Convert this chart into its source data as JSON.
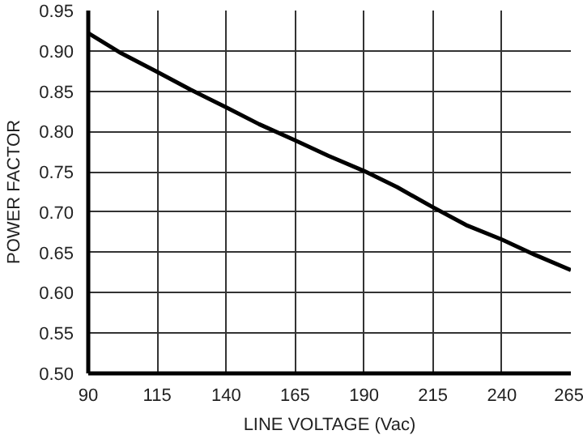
{
  "chart_data": {
    "type": "line",
    "xlabel": "LINE VOLTAGE (Vac)",
    "ylabel": "POWER FACTOR",
    "x": [
      90,
      102,
      115,
      127,
      140,
      152,
      165,
      177,
      190,
      202,
      215,
      227,
      240,
      252,
      265
    ],
    "series": [
      {
        "color": "#000000",
        "values": [
          0.922,
          0.897,
          0.874,
          0.852,
          0.83,
          0.809,
          0.789,
          0.77,
          0.751,
          0.731,
          0.706,
          0.684,
          0.666,
          0.647,
          0.628
        ]
      }
    ],
    "xlim": [
      90,
      265
    ],
    "ylim": [
      0.5,
      0.95
    ],
    "xticks": [
      90,
      115,
      140,
      165,
      190,
      215,
      240,
      265
    ],
    "yticks": [
      {
        "value": 0.5,
        "label": "0.50"
      },
      {
        "value": 0.55,
        "label": "0.55"
      },
      {
        "value": 0.6,
        "label": "0.60"
      },
      {
        "value": 0.65,
        "label": "0.65"
      },
      {
        "value": 0.7,
        "label": "0.70"
      },
      {
        "value": 0.75,
        "label": "0.75"
      },
      {
        "value": 0.8,
        "label": "0.80"
      },
      {
        "value": 0.85,
        "label": "0.85"
      },
      {
        "value": 0.9,
        "label": "0.90"
      },
      {
        "value": 0.95,
        "label": "0.95"
      }
    ],
    "grid": true,
    "marker": "none",
    "line_style": "solid"
  }
}
